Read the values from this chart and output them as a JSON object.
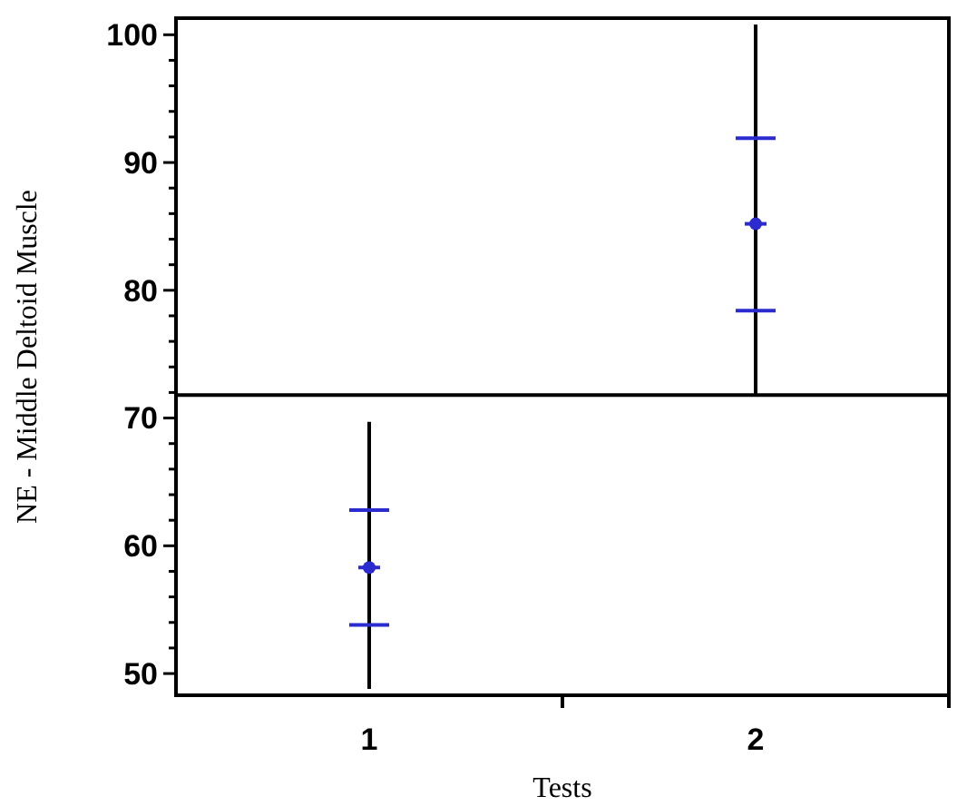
{
  "chart_data": {
    "type": "box",
    "xlabel": "Tests",
    "ylabel": "NE - Middle Deltoid Muscle",
    "categories": [
      "1",
      "2"
    ],
    "boxes": [
      {
        "low": 48.8,
        "q1": 53.8,
        "median": 58.3,
        "mean": 58.3,
        "q3": 62.8,
        "high": 69.7
      },
      {
        "low": 71.8,
        "q1": 78.4,
        "median": 85.2,
        "mean": 85.2,
        "q3": 91.9,
        "high": 100.8
      }
    ],
    "color": "#2b2bd0",
    "ylim": [
      48.3,
      101.3
    ],
    "yticks": [
      50,
      {
        "value": 52,
        "label": null
      },
      {
        "value": 54,
        "label": null
      },
      {
        "value": 56,
        "label": null
      },
      {
        "value": 58,
        "label": null
      },
      60,
      {
        "value": 62,
        "label": null
      },
      {
        "value": 64,
        "label": null
      },
      {
        "value": 66,
        "label": null
      },
      {
        "value": 68,
        "label": null
      },
      70,
      {
        "value": 72,
        "label": null
      },
      {
        "value": 74,
        "label": null
      },
      {
        "value": 76,
        "label": null
      },
      {
        "value": 78,
        "label": null
      },
      80,
      {
        "value": 82,
        "label": null
      },
      {
        "value": 84,
        "label": null
      },
      {
        "value": 86,
        "label": null
      },
      {
        "value": 88,
        "label": null
      },
      90,
      {
        "value": 92,
        "label": null
      },
      {
        "value": 94,
        "label": null
      },
      {
        "value": 96,
        "label": null
      },
      {
        "value": 98,
        "label": null
      },
      100
    ],
    "ref_lines": [
      {
        "axis": "y",
        "value": 71.8,
        "color": "#000000"
      }
    ]
  }
}
